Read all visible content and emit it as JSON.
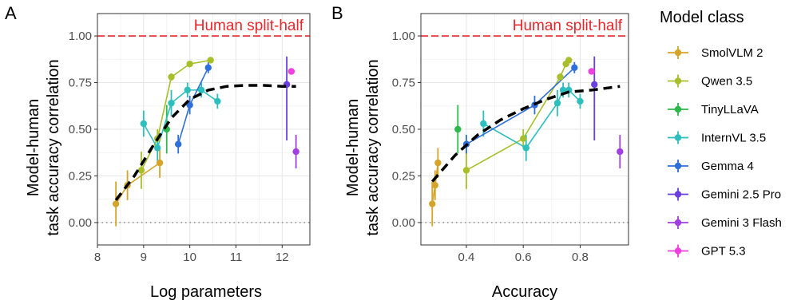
{
  "legend": {
    "title": "Model class",
    "items": [
      {
        "name": "SmolVLM 2",
        "color": "#D4A52A"
      },
      {
        "name": "Qwen 3.5",
        "color": "#A8BF2A"
      },
      {
        "name": "TinyLLaVA",
        "color": "#2DB84C"
      },
      {
        "name": "InternVL 3.5",
        "color": "#2CBFBD"
      },
      {
        "name": "Gemma 4",
        "color": "#2E6FD9"
      },
      {
        "name": "Gemini 2.5 Pro",
        "color": "#6A3FE0"
      },
      {
        "name": "Gemini 3 Flash",
        "color": "#A23FE0"
      },
      {
        "name": "GPT 5.3",
        "color": "#F23FE0"
      }
    ]
  },
  "reference": {
    "label": "Human split-half",
    "value": 1.0,
    "color": "#E8262B"
  },
  "chart_data": [
    {
      "type": "scatter",
      "panel_label": "A",
      "xlabel": "Log parameters",
      "ylabel": [
        "Model-human",
        "task accuracy correlation"
      ],
      "xlim": [
        8,
        12.6
      ],
      "ylim": [
        -0.12,
        1.12
      ],
      "xticks": [
        8,
        9,
        10,
        11,
        12
      ],
      "xtick_labels": [
        "8",
        "9",
        "10",
        "11",
        "12"
      ],
      "yticks": [
        0,
        0.25,
        0.5,
        0.75,
        1.0
      ],
      "ytick_labels": [
        "0.00",
        "0.25",
        "0.50",
        "0.75",
        "1.00"
      ],
      "grid": true,
      "series": [
        {
          "name": "SmolVLM 2",
          "connected": true,
          "points": [
            {
              "x": 8.4,
              "y": 0.1,
              "lo": -0.02,
              "hi": 0.22
            },
            {
              "x": 8.65,
              "y": 0.2,
              "lo": 0.12,
              "hi": 0.28
            },
            {
              "x": 9.35,
              "y": 0.32,
              "lo": 0.24,
              "hi": 0.4
            }
          ]
        },
        {
          "name": "Qwen 3.5",
          "connected": true,
          "points": [
            {
              "x": 8.95,
              "y": 0.28,
              "lo": 0.18,
              "hi": 0.38
            },
            {
              "x": 9.3,
              "y": 0.45,
              "lo": 0.4,
              "hi": 0.5
            },
            {
              "x": 9.6,
              "y": 0.78,
              "lo": 0.76,
              "hi": 0.8
            },
            {
              "x": 10.0,
              "y": 0.85,
              "lo": 0.84,
              "hi": 0.86
            },
            {
              "x": 10.45,
              "y": 0.87,
              "lo": 0.86,
              "hi": 0.88
            }
          ]
        },
        {
          "name": "TinyLLaVA",
          "connected": false,
          "points": [
            {
              "x": 9.5,
              "y": 0.5,
              "lo": 0.37,
              "hi": 0.63
            }
          ]
        },
        {
          "name": "InternVL 3.5",
          "connected": true,
          "points": [
            {
              "x": 9.0,
              "y": 0.53,
              "lo": 0.46,
              "hi": 0.6
            },
            {
              "x": 9.3,
              "y": 0.4,
              "lo": 0.33,
              "hi": 0.47
            },
            {
              "x": 9.6,
              "y": 0.64,
              "lo": 0.57,
              "hi": 0.71
            },
            {
              "x": 9.95,
              "y": 0.71,
              "lo": 0.67,
              "hi": 0.75
            },
            {
              "x": 10.25,
              "y": 0.71,
              "lo": 0.67,
              "hi": 0.75
            },
            {
              "x": 10.6,
              "y": 0.65,
              "lo": 0.61,
              "hi": 0.69
            }
          ]
        },
        {
          "name": "Gemma 4",
          "connected": true,
          "points": [
            {
              "x": 9.75,
              "y": 0.42,
              "lo": 0.37,
              "hi": 0.47
            },
            {
              "x": 10.0,
              "y": 0.63,
              "lo": 0.58,
              "hi": 0.68
            },
            {
              "x": 10.4,
              "y": 0.83,
              "lo": 0.8,
              "hi": 0.86
            }
          ]
        },
        {
          "name": "Gemini 2.5 Pro",
          "connected": false,
          "points": [
            {
              "x": 12.1,
              "y": 0.74,
              "lo": 0.44,
              "hi": 0.89
            }
          ]
        },
        {
          "name": "Gemini 3 Flash",
          "connected": false,
          "points": [
            {
              "x": 12.3,
              "y": 0.38,
              "lo": 0.29,
              "hi": 0.47
            }
          ]
        },
        {
          "name": "GPT 5.3",
          "connected": false,
          "points": [
            {
              "x": 12.2,
              "y": 0.81,
              "lo": 0.81,
              "hi": 0.81
            }
          ]
        }
      ],
      "trend": [
        [
          8.4,
          0.12
        ],
        [
          8.8,
          0.25
        ],
        [
          9.2,
          0.41
        ],
        [
          9.6,
          0.56
        ],
        [
          10.0,
          0.66
        ],
        [
          10.4,
          0.71
        ],
        [
          10.8,
          0.73
        ],
        [
          11.2,
          0.735
        ],
        [
          11.6,
          0.735
        ],
        [
          12.0,
          0.73
        ],
        [
          12.3,
          0.73
        ]
      ]
    },
    {
      "type": "scatter",
      "panel_label": "B",
      "xlabel": "Accuracy",
      "ylabel": [
        "Model-human",
        "task accuracy correlation"
      ],
      "xlim": [
        0.24,
        0.97
      ],
      "ylim": [
        -0.12,
        1.12
      ],
      "xticks": [
        0.4,
        0.6,
        0.8
      ],
      "xtick_labels": [
        "0.4",
        "0.6",
        "0.8"
      ],
      "yticks": [
        0,
        0.25,
        0.5,
        0.75,
        1.0
      ],
      "ytick_labels": [
        "0.00",
        "0.25",
        "0.50",
        "0.75",
        "1.00"
      ],
      "grid": true,
      "series": [
        {
          "name": "SmolVLM 2",
          "connected": true,
          "points": [
            {
              "x": 0.28,
              "y": 0.1,
              "lo": -0.02,
              "hi": 0.22
            },
            {
              "x": 0.29,
              "y": 0.2,
              "lo": 0.12,
              "hi": 0.28
            },
            {
              "x": 0.3,
              "y": 0.32,
              "lo": 0.24,
              "hi": 0.4
            }
          ]
        },
        {
          "name": "Qwen 3.5",
          "connected": true,
          "points": [
            {
              "x": 0.4,
              "y": 0.28,
              "lo": 0.18,
              "hi": 0.38
            },
            {
              "x": 0.6,
              "y": 0.45,
              "lo": 0.4,
              "hi": 0.5
            },
            {
              "x": 0.73,
              "y": 0.78,
              "lo": 0.76,
              "hi": 0.8
            },
            {
              "x": 0.75,
              "y": 0.85,
              "lo": 0.84,
              "hi": 0.86
            },
            {
              "x": 0.76,
              "y": 0.87,
              "lo": 0.86,
              "hi": 0.88
            }
          ]
        },
        {
          "name": "TinyLLaVA",
          "connected": false,
          "points": [
            {
              "x": 0.37,
              "y": 0.5,
              "lo": 0.37,
              "hi": 0.63
            }
          ]
        },
        {
          "name": "InternVL 3.5",
          "connected": true,
          "points": [
            {
              "x": 0.46,
              "y": 0.53,
              "lo": 0.46,
              "hi": 0.6
            },
            {
              "x": 0.61,
              "y": 0.4,
              "lo": 0.33,
              "hi": 0.47
            },
            {
              "x": 0.72,
              "y": 0.64,
              "lo": 0.57,
              "hi": 0.71
            },
            {
              "x": 0.74,
              "y": 0.71,
              "lo": 0.67,
              "hi": 0.75
            },
            {
              "x": 0.76,
              "y": 0.71,
              "lo": 0.67,
              "hi": 0.75
            },
            {
              "x": 0.8,
              "y": 0.65,
              "lo": 0.61,
              "hi": 0.69
            }
          ]
        },
        {
          "name": "Gemma 4",
          "connected": true,
          "points": [
            {
              "x": 0.4,
              "y": 0.42,
              "lo": 0.37,
              "hi": 0.47
            },
            {
              "x": 0.64,
              "y": 0.63,
              "lo": 0.58,
              "hi": 0.68
            },
            {
              "x": 0.78,
              "y": 0.83,
              "lo": 0.8,
              "hi": 0.86
            }
          ]
        },
        {
          "name": "Gemini 2.5 Pro",
          "connected": false,
          "points": [
            {
              "x": 0.85,
              "y": 0.74,
              "lo": 0.44,
              "hi": 0.89
            }
          ]
        },
        {
          "name": "Gemini 3 Flash",
          "connected": false,
          "points": [
            {
              "x": 0.94,
              "y": 0.38,
              "lo": 0.29,
              "hi": 0.47
            }
          ]
        },
        {
          "name": "GPT 5.3",
          "connected": false,
          "points": [
            {
              "x": 0.84,
              "y": 0.81,
              "lo": 0.81,
              "hi": 0.81
            }
          ]
        }
      ],
      "trend": [
        [
          0.28,
          0.22
        ],
        [
          0.36,
          0.36
        ],
        [
          0.44,
          0.47
        ],
        [
          0.52,
          0.55
        ],
        [
          0.6,
          0.61
        ],
        [
          0.68,
          0.66
        ],
        [
          0.76,
          0.7
        ],
        [
          0.84,
          0.71
        ],
        [
          0.94,
          0.73
        ]
      ]
    }
  ]
}
